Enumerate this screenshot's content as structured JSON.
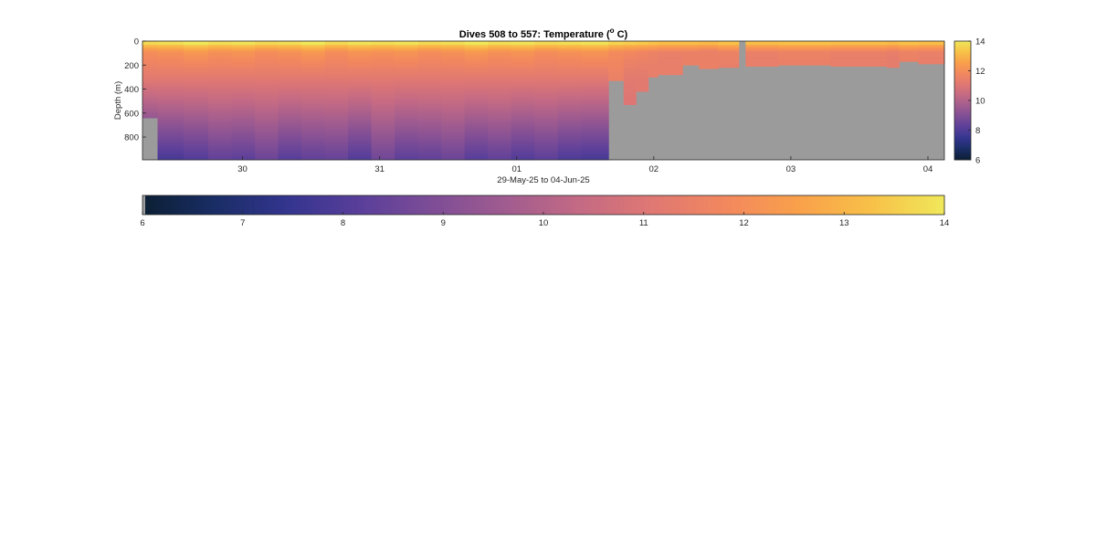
{
  "chart_data": {
    "type": "heatmap",
    "title": "Dives 508 to 557: Temperature (",
    "title_sup": "o",
    "title_end": " C)",
    "xlabel": "29-May-25 to 04-Jun-25",
    "ylabel": "Depth (m)",
    "ylim": [
      0,
      990
    ],
    "y_reversed": true,
    "y_ticks": [
      0,
      200,
      400,
      600,
      800
    ],
    "x_tick_labels": [
      "30",
      "31",
      "01",
      "02",
      "03",
      "04"
    ],
    "x_tick_day_offsets": [
      1,
      2,
      3,
      4,
      5,
      6
    ],
    "x_range_days": [
      0.27,
      6.12
    ],
    "clim": [
      6,
      14
    ],
    "colorbar_ticks": [
      6,
      8,
      10,
      12,
      14
    ],
    "horizontal_colorbar_ticks": [
      6,
      7,
      8,
      9,
      10,
      11,
      12,
      13,
      14
    ],
    "no_data_color": "#9b9b9b",
    "colormap": [
      "#0b1f33",
      "#1a2d66",
      "#34358f",
      "#5a3f9a",
      "#7e4d96",
      "#a15c8f",
      "#c46a84",
      "#e07873",
      "#f2885e",
      "#f9a04b",
      "#f8c148",
      "#f0e85a"
    ],
    "dives": [
      {
        "start": 0.27,
        "end": 0.38,
        "max_depth": 640,
        "surface_temp": 13.3,
        "deep_temp": 9.4
      },
      {
        "start": 0.38,
        "end": 0.57,
        "max_depth": 990,
        "surface_temp": 13.4,
        "deep_temp": 7.8
      },
      {
        "start": 0.57,
        "end": 0.75,
        "max_depth": 990,
        "surface_temp": 13.6,
        "deep_temp": 8.0
      },
      {
        "start": 0.75,
        "end": 0.92,
        "max_depth": 990,
        "surface_temp": 13.4,
        "deep_temp": 8.3
      },
      {
        "start": 0.92,
        "end": 1.09,
        "max_depth": 990,
        "surface_temp": 13.5,
        "deep_temp": 8.2
      },
      {
        "start": 1.09,
        "end": 1.26,
        "max_depth": 990,
        "surface_temp": 13.3,
        "deep_temp": 8.5
      },
      {
        "start": 1.26,
        "end": 1.43,
        "max_depth": 990,
        "surface_temp": 13.4,
        "deep_temp": 8.1
      },
      {
        "start": 1.43,
        "end": 1.6,
        "max_depth": 990,
        "surface_temp": 13.6,
        "deep_temp": 8.3
      },
      {
        "start": 1.6,
        "end": 1.77,
        "max_depth": 990,
        "surface_temp": 13.3,
        "deep_temp": 8.4
      },
      {
        "start": 1.77,
        "end": 1.94,
        "max_depth": 990,
        "surface_temp": 13.5,
        "deep_temp": 8.0
      },
      {
        "start": 1.94,
        "end": 2.11,
        "max_depth": 990,
        "surface_temp": 13.4,
        "deep_temp": 8.6
      },
      {
        "start": 2.11,
        "end": 2.28,
        "max_depth": 990,
        "surface_temp": 13.5,
        "deep_temp": 8.2
      },
      {
        "start": 2.28,
        "end": 2.45,
        "max_depth": 990,
        "surface_temp": 13.3,
        "deep_temp": 8.3
      },
      {
        "start": 2.45,
        "end": 2.62,
        "max_depth": 990,
        "surface_temp": 13.4,
        "deep_temp": 8.5
      },
      {
        "start": 2.62,
        "end": 2.79,
        "max_depth": 990,
        "surface_temp": 13.6,
        "deep_temp": 8.1
      },
      {
        "start": 2.79,
        "end": 2.96,
        "max_depth": 990,
        "surface_temp": 13.4,
        "deep_temp": 8.3
      },
      {
        "start": 2.96,
        "end": 3.13,
        "max_depth": 990,
        "surface_temp": 13.5,
        "deep_temp": 8.0
      },
      {
        "start": 3.13,
        "end": 3.3,
        "max_depth": 990,
        "surface_temp": 13.3,
        "deep_temp": 8.2
      },
      {
        "start": 3.3,
        "end": 3.47,
        "max_depth": 990,
        "surface_temp": 13.4,
        "deep_temp": 7.9
      },
      {
        "start": 3.47,
        "end": 3.67,
        "max_depth": 990,
        "surface_temp": 13.5,
        "deep_temp": 7.8
      },
      {
        "start": 3.67,
        "end": 3.78,
        "max_depth": 330,
        "surface_temp": 13.2,
        "deep_temp": 11.4
      },
      {
        "start": 3.78,
        "end": 3.87,
        "max_depth": 530,
        "surface_temp": 13.1,
        "deep_temp": 11.0
      },
      {
        "start": 3.87,
        "end": 3.96,
        "max_depth": 420,
        "surface_temp": 13.0,
        "deep_temp": 11.2
      },
      {
        "start": 3.96,
        "end": 4.03,
        "max_depth": 300,
        "surface_temp": 12.9,
        "deep_temp": 11.4
      },
      {
        "start": 4.03,
        "end": 4.21,
        "max_depth": 280,
        "surface_temp": 12.8,
        "deep_temp": 11.4
      },
      {
        "start": 4.21,
        "end": 4.33,
        "max_depth": 200,
        "surface_temp": 12.8,
        "deep_temp": 11.5
      },
      {
        "start": 4.33,
        "end": 4.47,
        "max_depth": 230,
        "surface_temp": 12.7,
        "deep_temp": 11.5
      },
      {
        "start": 4.47,
        "end": 4.62,
        "max_depth": 220,
        "surface_temp": 12.9,
        "deep_temp": 11.4
      },
      {
        "start": 4.67,
        "end": 4.91,
        "max_depth": 210,
        "surface_temp": 12.8,
        "deep_temp": 11.4
      },
      {
        "start": 4.91,
        "end": 5.29,
        "max_depth": 200,
        "surface_temp": 12.9,
        "deep_temp": 11.5
      },
      {
        "start": 5.29,
        "end": 5.7,
        "max_depth": 210,
        "surface_temp": 12.8,
        "deep_temp": 11.4
      },
      {
        "start": 5.7,
        "end": 5.79,
        "max_depth": 220,
        "surface_temp": 12.7,
        "deep_temp": 11.3
      },
      {
        "start": 5.79,
        "end": 5.93,
        "max_depth": 170,
        "surface_temp": 12.9,
        "deep_temp": 11.5
      },
      {
        "start": 5.93,
        "end": 6.12,
        "max_depth": 190,
        "surface_temp": 12.8,
        "deep_temp": 11.4
      }
    ]
  }
}
